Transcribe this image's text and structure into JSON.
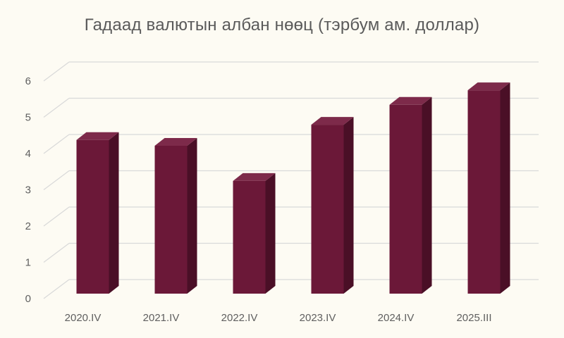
{
  "chart_data": {
    "type": "bar",
    "title": "Гадаад валютын албан нөөц (тэрбум ам. доллар)",
    "xlabel": "",
    "ylabel": "",
    "categories": [
      "2020.IV",
      "2021.IV",
      "2022.IV",
      "2023.IV",
      "2024.IV",
      "2025.III"
    ],
    "values": [
      4.53,
      4.37,
      3.4,
      4.95,
      5.5,
      5.9
    ],
    "ylim": [
      0,
      6
    ],
    "yticks": [
      "0",
      "1",
      "2",
      "3",
      "4",
      "5",
      "6"
    ],
    "grid": true,
    "style": "3d-column",
    "colors": {
      "bar_front": "#6b1838",
      "bar_top": "#7d2a4a",
      "bar_side": "#4a0f26",
      "grid": "#d9d9d9",
      "background": "#fdfbf3"
    }
  }
}
